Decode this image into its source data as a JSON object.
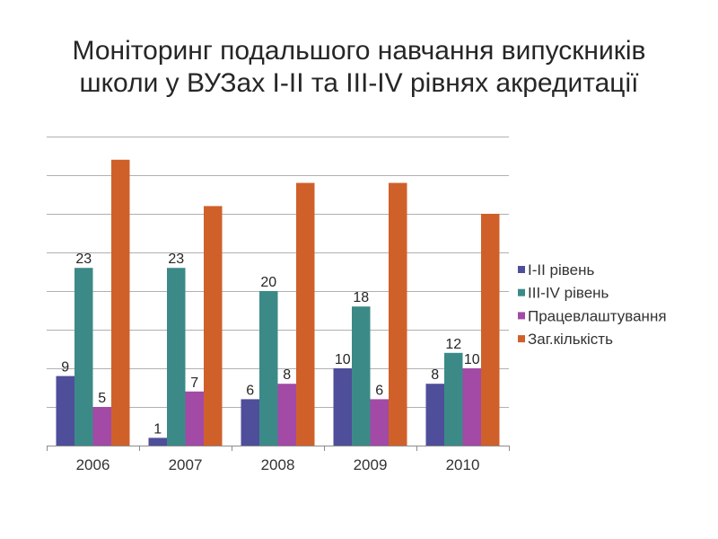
{
  "chart_data": {
    "type": "bar",
    "title": "Моніторинг подальшого навчання випускників\nшколи у ВУЗах І-ІІ та ІІІ-IV рівнях акредитації",
    "categories": [
      "2006",
      "2007",
      "2008",
      "2009",
      "2010"
    ],
    "series": [
      {
        "name": "І-ІІ рівень",
        "values": [
          9,
          1,
          6,
          10,
          8
        ],
        "color": "#4E4E9A",
        "data_labels_shown": true
      },
      {
        "name": "ІІІ-IV рівень",
        "values": [
          23,
          23,
          20,
          18,
          12
        ],
        "color": "#3C8A88",
        "data_labels_shown": true
      },
      {
        "name": "Працевлаштування",
        "values": [
          5,
          7,
          8,
          6,
          10
        ],
        "color": "#A24AA6",
        "data_labels_shown": true
      },
      {
        "name": "Заг.кількість",
        "values": [
          37,
          31,
          34,
          34,
          30
        ],
        "color": "#D0602A",
        "data_labels_shown": false
      }
    ],
    "ylim": [
      0,
      40
    ],
    "y_major_unit": 5,
    "y_tick_labels_shown": false,
    "grid": true,
    "legend_position": "right"
  }
}
